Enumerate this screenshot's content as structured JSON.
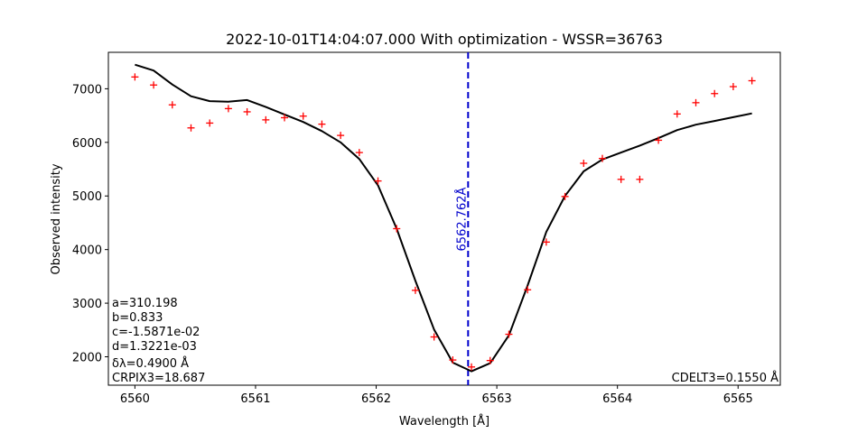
{
  "chart_data": {
    "type": "line",
    "title": "2022-10-01T14:04:07.000 With optimization - WSSR=36763",
    "xlabel": "Wavelength [Å]",
    "ylabel": "Observed intensity",
    "xlim": [
      6559.78,
      6565.35
    ],
    "ylim": [
      1470,
      7680
    ],
    "xticks": [
      6560,
      6561,
      6562,
      6563,
      6564,
      6565
    ],
    "yticks": [
      2000,
      3000,
      4000,
      5000,
      6000,
      7000
    ],
    "grid": false,
    "observed": {
      "marker": "+",
      "color": "#ff0000",
      "x": [
        6560.0,
        6560.155,
        6560.31,
        6560.465,
        6560.62,
        6560.775,
        6560.93,
        6561.085,
        6561.24,
        6561.395,
        6561.55,
        6561.705,
        6561.86,
        6562.015,
        6562.17,
        6562.325,
        6562.48,
        6562.635,
        6562.79,
        6562.945,
        6563.1,
        6563.255,
        6563.41,
        6563.565,
        6563.72,
        6563.875,
        6564.03,
        6564.185,
        6564.34,
        6564.495,
        6564.65,
        6564.805,
        6564.96,
        6565.115
      ],
      "y": [
        7220,
        7070,
        6700,
        6270,
        6360,
        6630,
        6570,
        6420,
        6460,
        6490,
        6340,
        6130,
        5810,
        5280,
        4390,
        3240,
        2370,
        1940,
        1810,
        1930,
        2420,
        3250,
        4140,
        4990,
        5610,
        5700,
        5310,
        5310,
        6040,
        6530,
        6740,
        6910,
        7040,
        7150
      ]
    },
    "fit": {
      "color": "#000000",
      "x": [
        6560.0,
        6560.155,
        6560.31,
        6560.465,
        6560.62,
        6560.775,
        6560.93,
        6561.085,
        6561.24,
        6561.395,
        6561.55,
        6561.705,
        6561.86,
        6562.015,
        6562.17,
        6562.325,
        6562.48,
        6562.635,
        6562.79,
        6562.945,
        6563.1,
        6563.255,
        6563.41,
        6563.565,
        6563.72,
        6563.875,
        6564.03,
        6564.185,
        6564.34,
        6564.495,
        6564.65,
        6564.805,
        6564.96,
        6565.115
      ],
      "y": [
        7450,
        7340,
        7080,
        6860,
        6770,
        6760,
        6790,
        6660,
        6520,
        6380,
        6210,
        6000,
        5690,
        5200,
        4390,
        3420,
        2510,
        1890,
        1730,
        1880,
        2400,
        3330,
        4330,
        5000,
        5460,
        5680,
        5810,
        5940,
        6080,
        6230,
        6330,
        6400,
        6470,
        6540
      ]
    },
    "center_line": {
      "x": 6562.762,
      "color": "#0000cc",
      "style": "dashed",
      "label": "6562.762Å"
    },
    "annotations_left": [
      "a=310.198",
      "b=0.833",
      "c=-1.5871e-02",
      "d=1.3221e-03",
      "δλ=0.4900 Å",
      "CRPIX3=18.687"
    ],
    "annotation_right": "CDELT3=0.1550 Å"
  }
}
